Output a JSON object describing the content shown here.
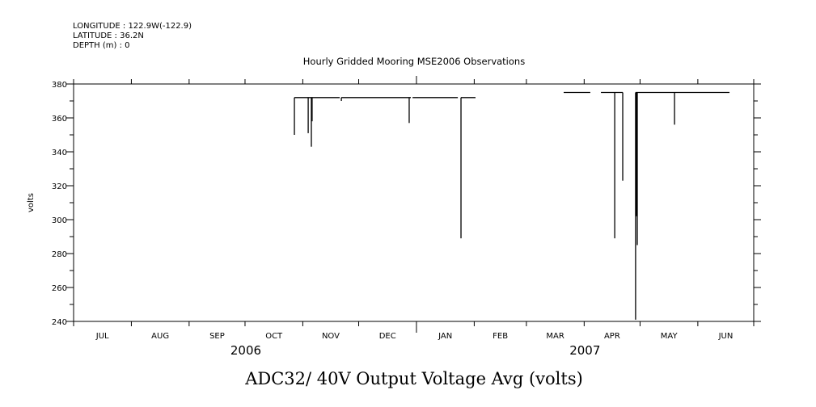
{
  "header": {
    "longitude": "LONGITUDE : 122.9W(-122.9)",
    "latitude": "LATITUDE : 36.2N",
    "depth": "DEPTH (m) : 0"
  },
  "chart_data": {
    "type": "line",
    "title": "Hourly Gridded Mooring MSE2006 Observations",
    "bottom_title": "ADC32/ 40V Output Voltage Avg (volts)",
    "ylabel": "volts",
    "xlabel": "",
    "ylim": [
      240,
      380
    ],
    "yticks": [
      240,
      260,
      280,
      300,
      320,
      340,
      360,
      380
    ],
    "x_unit": "days since 2006-07-01",
    "xlim": [
      0,
      365
    ],
    "months": [
      "JUL",
      "AUG",
      "SEP",
      "OCT",
      "NOV",
      "DEC",
      "JAN",
      "FEB",
      "MAR",
      "APR",
      "MAY",
      "JUN"
    ],
    "month_starts": [
      0,
      31,
      62,
      92,
      123,
      153,
      184,
      215,
      243,
      274,
      304,
      335,
      365
    ],
    "years": [
      {
        "label": "2006",
        "day": 92
      },
      {
        "label": "2007",
        "day": 274
      }
    ],
    "segments": [
      {
        "start": 118.5,
        "end": 142.8,
        "value": 372
      },
      {
        "start": 143.7,
        "end": 181,
        "value": 372
      },
      {
        "start": 181.9,
        "end": 206.2,
        "value": 372
      },
      {
        "start": 207.9,
        "end": 215.7,
        "value": 372
      },
      {
        "start": 263,
        "end": 277.3,
        "value": 375
      },
      {
        "start": 283,
        "end": 294.7,
        "value": 375
      },
      {
        "start": 301.6,
        "end": 352,
        "value": 375
      }
    ],
    "spikes": [
      {
        "day": 118.5,
        "top": 372,
        "min": 350
      },
      {
        "day": 125.9,
        "top": 372,
        "min": 351
      },
      {
        "day": 127.6,
        "top": 372,
        "min": 343
      },
      {
        "day": 128,
        "top": 372,
        "min": 358
      },
      {
        "day": 143.7,
        "top": 372,
        "min": 370
      },
      {
        "day": 180.1,
        "top": 372,
        "min": 357
      },
      {
        "day": 207.9,
        "top": 372,
        "min": 289
      },
      {
        "day": 290.4,
        "top": 375,
        "min": 289
      },
      {
        "day": 294.7,
        "top": 375,
        "min": 323
      },
      {
        "day": 301.6,
        "top": 375,
        "min": 241
      },
      {
        "day": 302.1,
        "top": 375,
        "min": 302
      },
      {
        "day": 302.5,
        "top": 375,
        "min": 285
      },
      {
        "day": 322.5,
        "top": 375,
        "min": 356
      }
    ]
  }
}
